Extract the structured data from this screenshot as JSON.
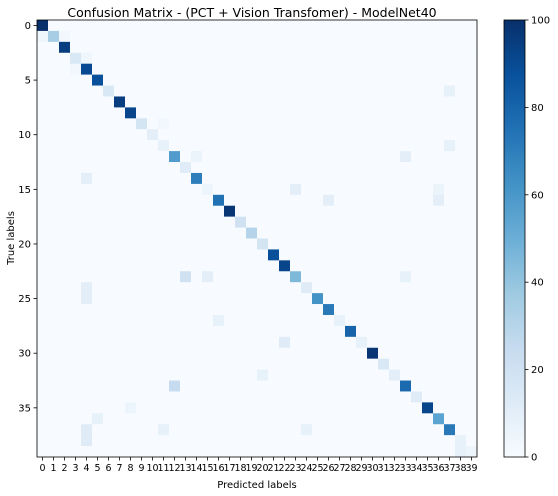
{
  "chart_data": {
    "type": "heatmap",
    "title": "Confusion Matrix - (PCT + Vision Transfomer) - ModelNet40",
    "xlabel": "Predicted labels",
    "ylabel": "True labels",
    "x_tick_labels": [
      "0",
      "1",
      "2",
      "3",
      "4",
      "5",
      "6",
      "7",
      "8",
      "9",
      "10",
      "11",
      "12",
      "13",
      "14",
      "15",
      "16",
      "17",
      "18",
      "19",
      "20",
      "21",
      "22",
      "23",
      "24",
      "25",
      "26",
      "27",
      "28",
      "29",
      "30",
      "31",
      "32",
      "33",
      "34",
      "35",
      "36",
      "37",
      "38",
      "39"
    ],
    "y_tick_labels": [
      "0",
      "5",
      "10",
      "15",
      "20",
      "25",
      "30",
      "35"
    ],
    "y_tick_indices": [
      0,
      5,
      10,
      15,
      20,
      25,
      30,
      35
    ],
    "colorbar": {
      "min": 0,
      "max": 100,
      "ticks": [
        "0",
        "20",
        "40",
        "60",
        "80",
        "100"
      ],
      "colormap": "Blues"
    },
    "diagonal": [
      100,
      35,
      95,
      15,
      90,
      88,
      15,
      95,
      92,
      18,
      10,
      8,
      58,
      12,
      70,
      5,
      75,
      98,
      20,
      30,
      18,
      88,
      92,
      45,
      12,
      62,
      72,
      8,
      80,
      8,
      98,
      15,
      10,
      78,
      12,
      92,
      55,
      72,
      8,
      5
    ],
    "off_diagonal": [
      {
        "row": 1,
        "col": 0,
        "value": 4
      },
      {
        "row": 1,
        "col": 2,
        "value": 3
      },
      {
        "row": 3,
        "col": 4,
        "value": 4
      },
      {
        "row": 4,
        "col": 3,
        "value": 3
      },
      {
        "row": 6,
        "col": 37,
        "value": 8
      },
      {
        "row": 9,
        "col": 11,
        "value": 3
      },
      {
        "row": 11,
        "col": 37,
        "value": 8
      },
      {
        "row": 12,
        "col": 14,
        "value": 6
      },
      {
        "row": 12,
        "col": 33,
        "value": 10
      },
      {
        "row": 14,
        "col": 4,
        "value": 10
      },
      {
        "row": 15,
        "col": 23,
        "value": 10
      },
      {
        "row": 15,
        "col": 36,
        "value": 6
      },
      {
        "row": 16,
        "col": 26,
        "value": 10
      },
      {
        "row": 16,
        "col": 36,
        "value": 10
      },
      {
        "row": 23,
        "col": 13,
        "value": 20
      },
      {
        "row": 23,
        "col": 15,
        "value": 10
      },
      {
        "row": 23,
        "col": 33,
        "value": 8
      },
      {
        "row": 24,
        "col": 4,
        "value": 10
      },
      {
        "row": 25,
        "col": 4,
        "value": 10
      },
      {
        "row": 27,
        "col": 16,
        "value": 8
      },
      {
        "row": 29,
        "col": 22,
        "value": 12
      },
      {
        "row": 32,
        "col": 20,
        "value": 8
      },
      {
        "row": 33,
        "col": 12,
        "value": 25
      },
      {
        "row": 35,
        "col": 8,
        "value": 5
      },
      {
        "row": 36,
        "col": 5,
        "value": 8
      },
      {
        "row": 37,
        "col": 4,
        "value": 12
      },
      {
        "row": 37,
        "col": 11,
        "value": 8
      },
      {
        "row": 37,
        "col": 24,
        "value": 8
      },
      {
        "row": 38,
        "col": 4,
        "value": 12
      },
      {
        "row": 39,
        "col": 38,
        "value": 8
      }
    ]
  }
}
